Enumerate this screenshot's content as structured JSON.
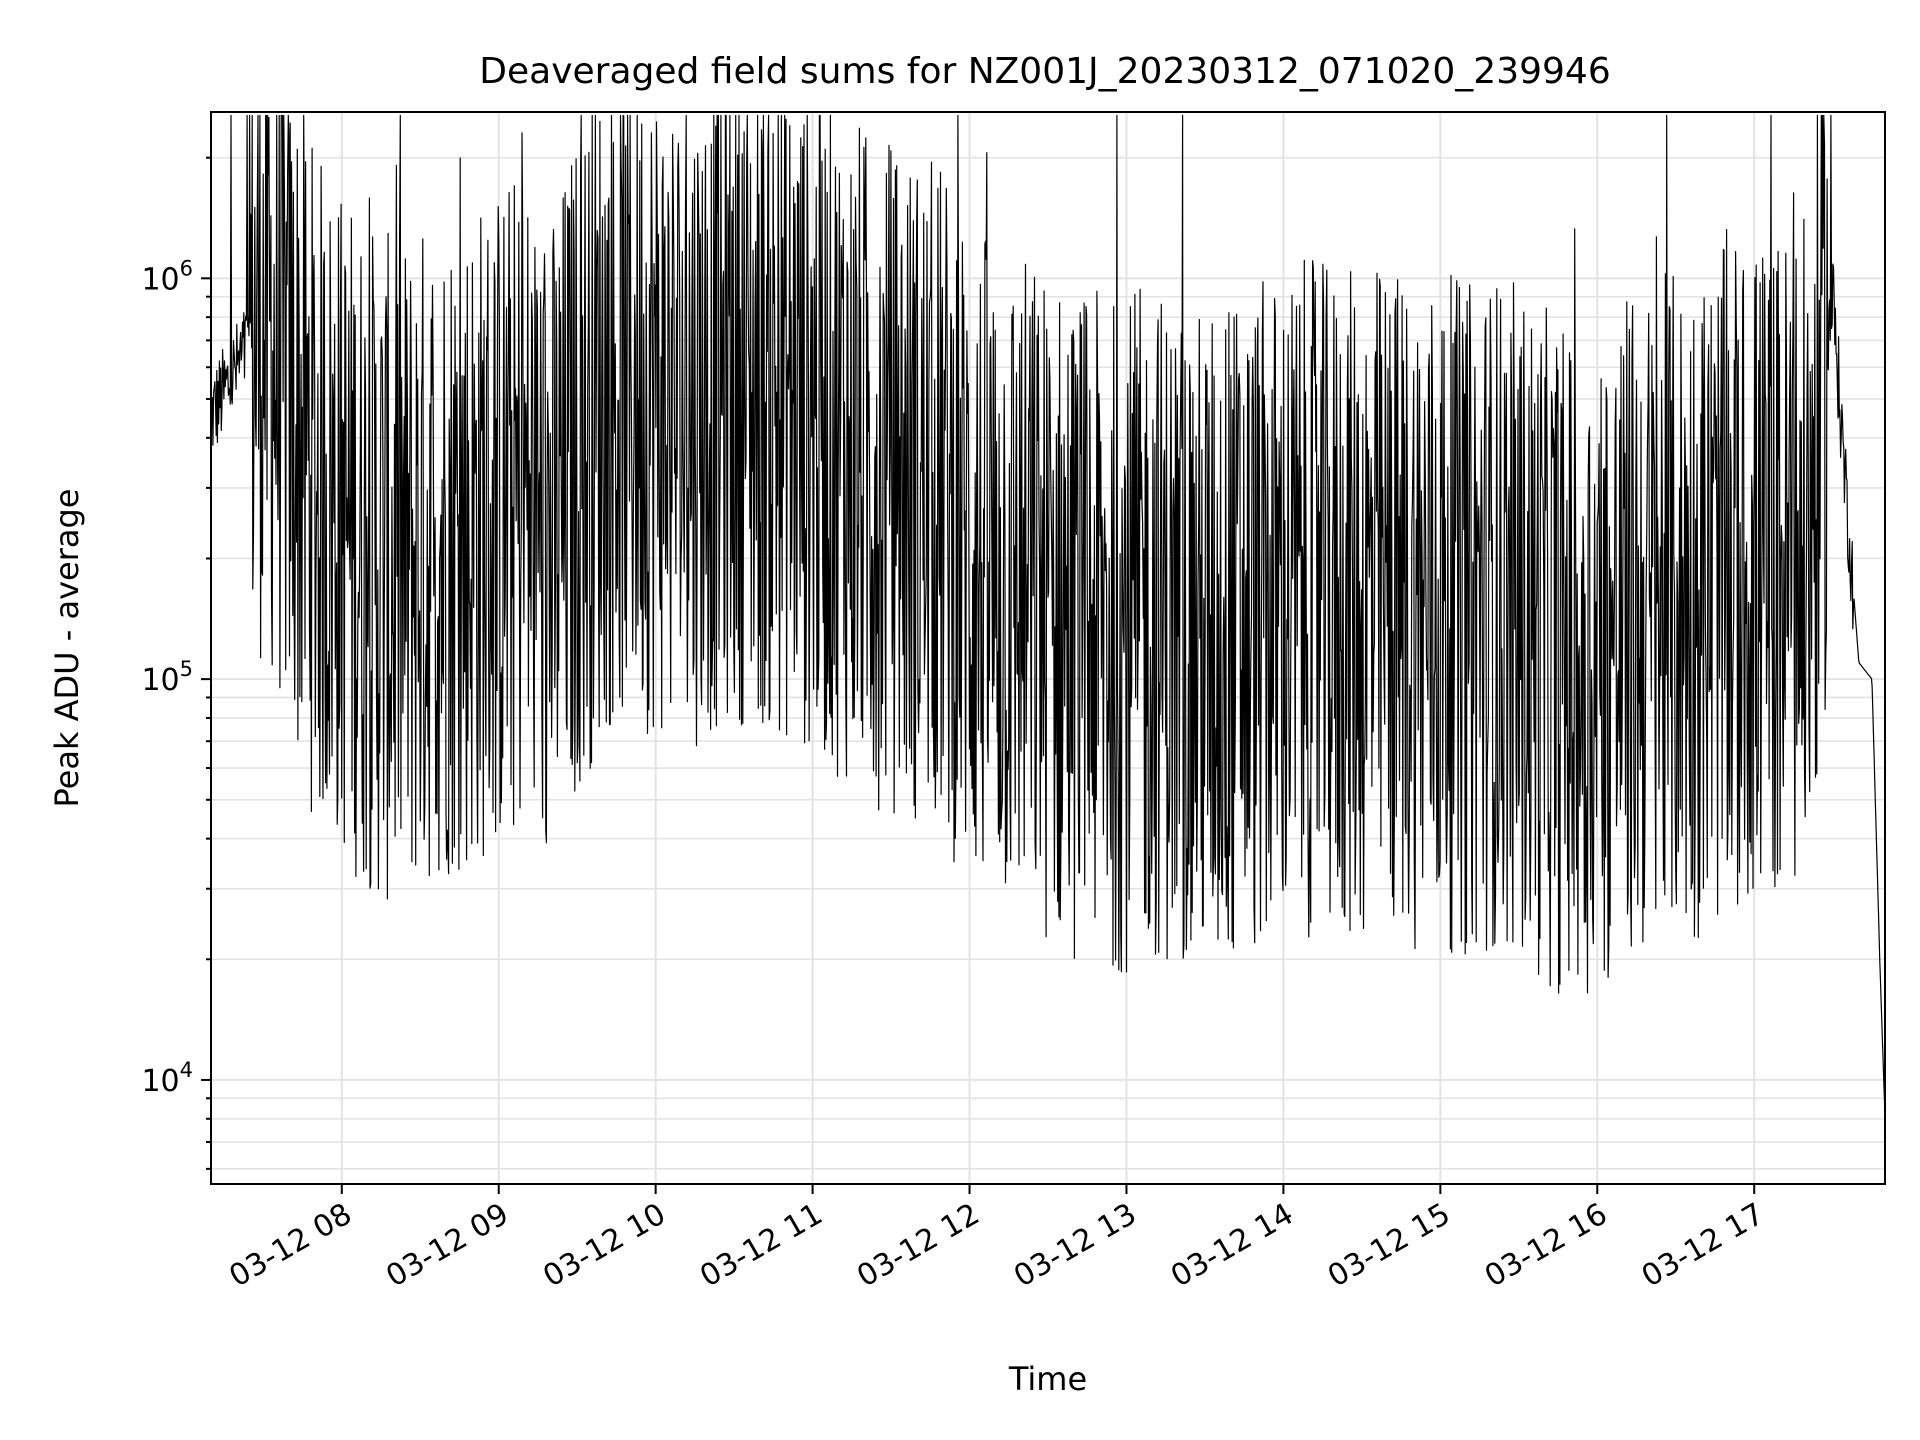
{
  "chart_data": {
    "type": "line",
    "title": "Deaveraged field sums for NZ001J_20230312_071020_239946",
    "xlabel": "Time",
    "ylabel": "Peak ADU - average",
    "y_scale": "log",
    "ylim": [
      5500,
      2600000
    ],
    "xlim": [
      "03-12 07:10",
      "03-12 17:50"
    ],
    "grid": true,
    "y_ticks": [
      {
        "value": 10000,
        "base": "10",
        "exp": "4"
      },
      {
        "value": 100000,
        "base": "10",
        "exp": "5"
      },
      {
        "value": 1000000,
        "base": "10",
        "exp": "6"
      }
    ],
    "x_ticks": [
      {
        "value": "03-12 08:00",
        "label": "03-12 08"
      },
      {
        "value": "03-12 09:00",
        "label": "03-12 09"
      },
      {
        "value": "03-12 10:00",
        "label": "03-12 10"
      },
      {
        "value": "03-12 11:00",
        "label": "03-12 11"
      },
      {
        "value": "03-12 12:00",
        "label": "03-12 12"
      },
      {
        "value": "03-12 13:00",
        "label": "03-12 13"
      },
      {
        "value": "03-12 14:00",
        "label": "03-12 14"
      },
      {
        "value": "03-12 15:00",
        "label": "03-12 15"
      },
      {
        "value": "03-12 16:00",
        "label": "03-12 16"
      },
      {
        "value": "03-12 17:00",
        "label": "03-12 17"
      }
    ],
    "series": [
      {
        "color": "#000000",
        "x": [
          "03-12 07:10",
          "03-12 07:20",
          "03-12 07:30",
          "03-12 07:40",
          "03-12 07:50",
          "03-12 08:00",
          "03-12 08:10",
          "03-12 08:20",
          "03-12 08:30",
          "03-12 08:40",
          "03-12 08:50",
          "03-12 09:00",
          "03-12 09:10",
          "03-12 09:20",
          "03-12 09:30",
          "03-12 09:40",
          "03-12 09:50",
          "03-12 10:00",
          "03-12 10:10",
          "03-12 10:20",
          "03-12 10:30",
          "03-12 10:40",
          "03-12 10:50",
          "03-12 11:00",
          "03-12 11:10",
          "03-12 11:20",
          "03-12 11:30",
          "03-12 11:40",
          "03-12 11:50",
          "03-12 12:00",
          "03-12 12:10",
          "03-12 12:20",
          "03-12 12:30",
          "03-12 12:40",
          "03-12 12:50",
          "03-12 13:00",
          "03-12 13:10",
          "03-12 13:20",
          "03-12 13:30",
          "03-12 13:40",
          "03-12 13:50",
          "03-12 14:00",
          "03-12 14:10",
          "03-12 14:20",
          "03-12 14:30",
          "03-12 14:40",
          "03-12 14:50",
          "03-12 15:00",
          "03-12 15:10",
          "03-12 15:20",
          "03-12 15:30",
          "03-12 15:40",
          "03-12 15:50",
          "03-12 16:00",
          "03-12 16:10",
          "03-12 16:20",
          "03-12 16:30",
          "03-12 16:40",
          "03-12 16:50",
          "03-12 17:00",
          "03-12 17:10",
          "03-12 17:20",
          "03-12 17:30",
          "03-12 17:35",
          "03-12 17:40",
          "03-12 17:45",
          "03-12 17:48",
          "03-12 17:50"
        ],
        "y": [
          450000,
          600000,
          800000,
          500000,
          300000,
          250000,
          200000,
          180000,
          200000,
          220000,
          230000,
          250000,
          280000,
          200000,
          350000,
          500000,
          550000,
          500000,
          450000,
          500000,
          550000,
          520000,
          480000,
          450000,
          400000,
          350000,
          320000,
          300000,
          280000,
          200000,
          180000,
          170000,
          150000,
          140000,
          130000,
          130000,
          140000,
          130000,
          120000,
          130000,
          140000,
          150000,
          160000,
          150000,
          150000,
          160000,
          150000,
          150000,
          140000,
          150000,
          140000,
          120000,
          110000,
          110000,
          130000,
          140000,
          150000,
          160000,
          170000,
          180000,
          190000,
          200000,
          900000,
          300000,
          110000,
          100000,
          20000,
          8000
        ]
      }
    ]
  }
}
